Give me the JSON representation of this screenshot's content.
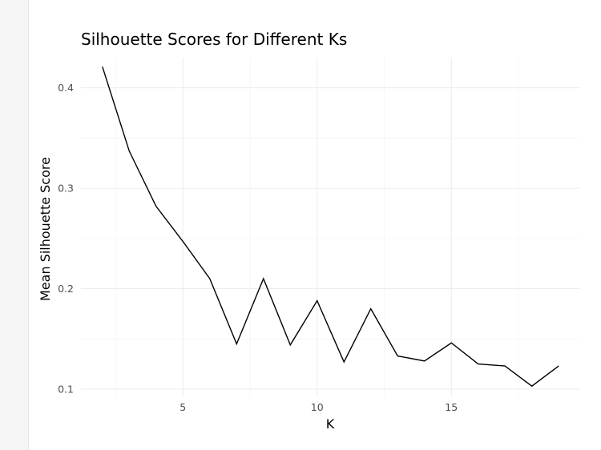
{
  "chart_data": {
    "type": "line",
    "title": "Silhouette Scores for Different Ks",
    "xlabel": "K",
    "ylabel": "Mean Silhouette Score",
    "xlim": [
      1.2,
      19.8
    ],
    "ylim": [
      0.092,
      0.43
    ],
    "x_ticks": [
      5,
      10,
      15
    ],
    "y_ticks": [
      0.1,
      0.2,
      0.3,
      0.4
    ],
    "x_tick_labels": [
      "5",
      "10",
      "15"
    ],
    "y_tick_labels": [
      "0.1",
      "0.2",
      "0.3",
      "0.4"
    ],
    "grid": true,
    "legend": "none",
    "series": [
      {
        "x": [
          2,
          3,
          4,
          5,
          6,
          7,
          8,
          9,
          10,
          11,
          12,
          13,
          14,
          15,
          16,
          17,
          18,
          19
        ],
        "y": [
          0.421,
          0.337,
          0.282,
          0.247,
          0.21,
          0.145,
          0.21,
          0.144,
          0.188,
          0.127,
          0.18,
          0.133,
          0.128,
          0.146,
          0.125,
          0.123,
          0.103,
          0.123
        ]
      }
    ]
  }
}
